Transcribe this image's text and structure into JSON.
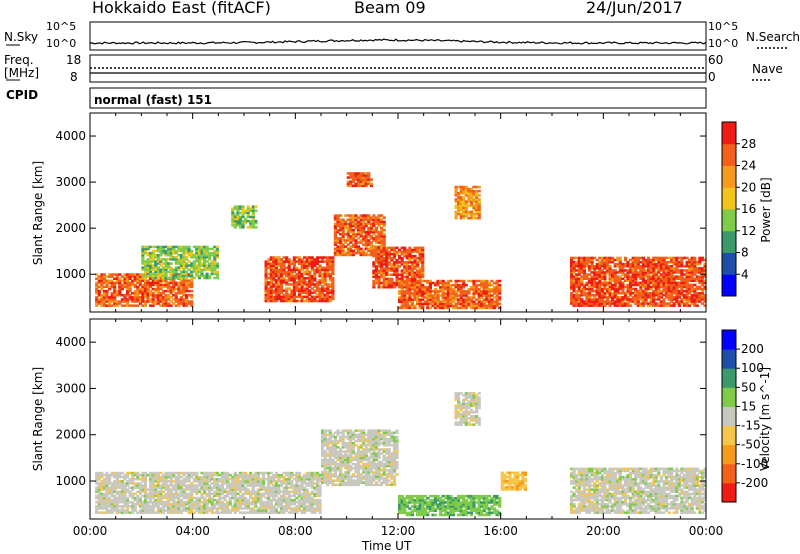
{
  "header": {
    "station": "Hokkaido East (fitACF)",
    "beam": "Beam 09",
    "date": "24/Jun/2017"
  },
  "strip_panels": {
    "nsky_label": "N.Sky",
    "nsky_ticks": [
      "10^5",
      "10^0"
    ],
    "freq_label_top": "Freq.",
    "freq_label_bottom": "[MHz]",
    "freq_ticks": [
      "18",
      "8"
    ],
    "nsearch_label": "N.Search",
    "nsearch_ticks": [
      "10^5",
      "10^0"
    ],
    "nave_label": "Nave",
    "nave_ticks": [
      "60",
      "0"
    ],
    "cpid_label": "CPID",
    "cpid_value": "normal (fast) 151"
  },
  "colors": {
    "power": [
      "#0000ff",
      "#1e4fa8",
      "#3a9a6a",
      "#7fcb4a",
      "#f0c41a",
      "#f59a1a",
      "#f2601a",
      "#ee1c14"
    ],
    "velocity": [
      "#ee1c14",
      "#f2601a",
      "#f59a1a",
      "#f6c64a",
      "#c8c8c0",
      "#7fcb4a",
      "#3a9a6a",
      "#1e4fa8",
      "#0000ff"
    ]
  },
  "chart_data": [
    {
      "type": "heatmap",
      "panel": "power",
      "xlabel": "Time UT",
      "ylabel": "Slant Range [km]",
      "x_ticks": [
        "00:00",
        "04:00",
        "08:00",
        "12:00",
        "16:00",
        "20:00",
        "00:00"
      ],
      "x_range_hours": [
        0,
        24
      ],
      "y_ticks": [
        1000,
        2000,
        3000,
        4000
      ],
      "ylim": [
        180,
        4500
      ],
      "colorbar_label": "Power [dB]",
      "colorbar_ticks": [
        4,
        8,
        12,
        16,
        20,
        24,
        28
      ],
      "colorbar_range": [
        0,
        32
      ],
      "regions": [
        {
          "t0": 0.2,
          "t1": 4.0,
          "r0": 300,
          "r1": 1000,
          "v": 26
        },
        {
          "t0": 2.0,
          "t1": 5.0,
          "r0": 900,
          "r1": 1600,
          "v": 14
        },
        {
          "t0": 5.5,
          "t1": 6.5,
          "r0": 2000,
          "r1": 2500,
          "v": 14
        },
        {
          "t0": 6.8,
          "t1": 9.5,
          "r0": 400,
          "r1": 1400,
          "v": 27
        },
        {
          "t0": 9.5,
          "t1": 11.5,
          "r0": 1400,
          "r1": 2300,
          "v": 26
        },
        {
          "t0": 10.0,
          "t1": 11.0,
          "r0": 2900,
          "r1": 3200,
          "v": 27
        },
        {
          "t0": 11.0,
          "t1": 13.0,
          "r0": 700,
          "r1": 1600,
          "v": 27
        },
        {
          "t0": 12.0,
          "t1": 16.0,
          "r0": 250,
          "r1": 900,
          "v": 26
        },
        {
          "t0": 14.2,
          "t1": 15.2,
          "r0": 2200,
          "r1": 2900,
          "v": 22
        },
        {
          "t0": 18.7,
          "t1": 24.0,
          "r0": 300,
          "r1": 1400,
          "v": 27
        }
      ]
    },
    {
      "type": "heatmap",
      "panel": "velocity",
      "xlabel": "Time UT",
      "ylabel": "Slant Range [km]",
      "x_ticks": [
        "00:00",
        "04:00",
        "08:00",
        "12:00",
        "16:00",
        "20:00",
        "00:00"
      ],
      "x_range_hours": [
        0,
        24
      ],
      "y_ticks": [
        1000,
        2000,
        3000,
        4000
      ],
      "ylim": [
        180,
        4500
      ],
      "colorbar_label": "Velocity [m s^-1]",
      "colorbar_ticks": [
        200,
        100,
        50,
        15,
        -15,
        -50,
        -100,
        -200
      ],
      "regions": [
        {
          "t0": 0.2,
          "t1": 9.0,
          "r0": 300,
          "r1": 1200,
          "v": 0
        },
        {
          "t0": 9.0,
          "t1": 12.0,
          "r0": 900,
          "r1": 2100,
          "v": 0
        },
        {
          "t0": 12.0,
          "t1": 16.0,
          "r0": 250,
          "r1": 700,
          "v": 40
        },
        {
          "t0": 14.2,
          "t1": 15.2,
          "r0": 2200,
          "r1": 2900,
          "v": 0
        },
        {
          "t0": 16.0,
          "t1": 17.0,
          "r0": 800,
          "r1": 1200,
          "v": -40
        },
        {
          "t0": 18.7,
          "t1": 24.0,
          "r0": 300,
          "r1": 1300,
          "v": 0
        }
      ]
    }
  ]
}
